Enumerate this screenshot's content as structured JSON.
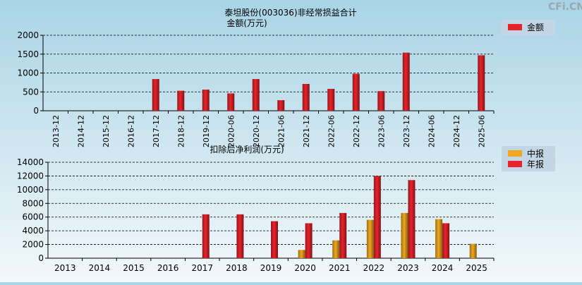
{
  "watermark": "CFi.CN",
  "colors": {
    "red_bar": "#e8232b",
    "orange_bar": "#f0a81e",
    "legend_bg": "#c2d6e6",
    "grid": "#000000"
  },
  "chart_data": [
    {
      "type": "bar",
      "title": "泰坦股份(003036)非经常损益合计",
      "ylabel": "金额(万元)",
      "xlabel": "",
      "ylim": [
        0,
        2000
      ],
      "yticks": [
        0,
        500,
        1000,
        1500,
        2000
      ],
      "grid": true,
      "legend_position": "top-right",
      "categories": [
        "2013-12",
        "2014-12",
        "2015-12",
        "2016-12",
        "2017-12",
        "2018-12",
        "2019-12",
        "2020-06",
        "2020-12",
        "2021-06",
        "2021-12",
        "2022-06",
        "2022-12",
        "2023-06",
        "2023-12",
        "2024-06",
        "2024-12",
        "2025-06"
      ],
      "series": [
        {
          "name": "金额",
          "color": "#e8232b",
          "values": [
            null,
            null,
            null,
            null,
            840,
            530,
            560,
            460,
            840,
            280,
            710,
            580,
            980,
            520,
            1540,
            null,
            null,
            1470
          ]
        }
      ]
    },
    {
      "type": "bar",
      "title": "扣除后净利润(万元)",
      "xlabel": "",
      "ylabel": "",
      "ylim": [
        0,
        14000
      ],
      "yticks": [
        0,
        2000,
        4000,
        6000,
        8000,
        10000,
        12000,
        14000
      ],
      "grid": true,
      "legend_position": "top-right",
      "categories": [
        "2013",
        "2014",
        "2015",
        "2016",
        "2017",
        "2018",
        "2019",
        "2020",
        "2021",
        "2022",
        "2023",
        "2024",
        "2025"
      ],
      "series": [
        {
          "name": "中报",
          "color": "#f0a81e",
          "values": [
            null,
            null,
            null,
            null,
            null,
            null,
            null,
            1200,
            2600,
            5600,
            6600,
            5700,
            2100
          ]
        },
        {
          "name": "年报",
          "color": "#e8232b",
          "values": [
            null,
            null,
            null,
            null,
            6400,
            6400,
            5400,
            5100,
            6600,
            12000,
            11400,
            5100,
            null
          ]
        }
      ]
    }
  ]
}
